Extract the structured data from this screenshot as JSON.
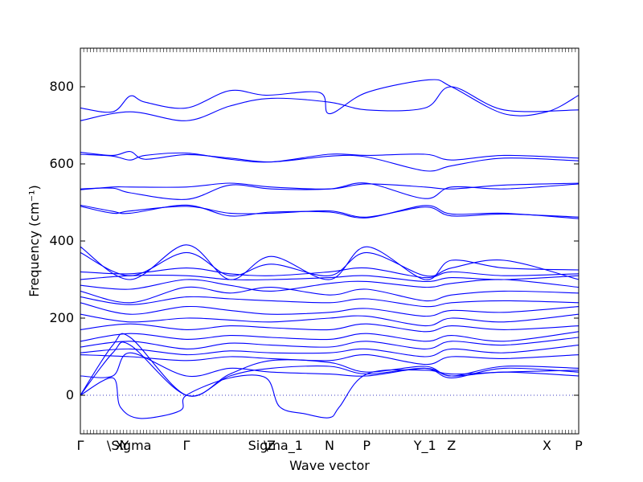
{
  "chart_data": {
    "type": "line",
    "title": "",
    "xlabel": "Wave vector",
    "ylabel": "Frequency (cm⁻¹)",
    "ylim": [
      -100,
      900
    ],
    "yticks": [
      0,
      200,
      400,
      600,
      800
    ],
    "grid": false,
    "xlim": [
      0,
      1
    ],
    "high_symmetry_points": [
      {
        "label": "Γ",
        "x": 0.0
      },
      {
        "label": "X",
        "x": 0.0787
      },
      {
        "label": "Y",
        "x": 0.0894
      },
      {
        "label": "\\Sigma",
        "x": 0.0979
      },
      {
        "label": "Γ",
        "x": 0.2128
      },
      {
        "label": "\\",
        "x": 0.3723
      },
      {
        "label": "Z",
        "x": 0.383
      },
      {
        "label": "Sigma_1",
        "x": 0.3915
      },
      {
        "label": "N",
        "x": 0.5
      },
      {
        "label": "P",
        "x": 0.5745
      },
      {
        "label": "Y_1",
        "x": 0.6915
      },
      {
        "label": "Z",
        "x": 0.7447
      },
      {
        "label": "X",
        "x": 0.9362
      },
      {
        "label": "P",
        "x": 1.0
      }
    ],
    "zero_line": {
      "y": 0,
      "style": "dotted"
    },
    "series": [
      {
        "x": [
          0,
          0.1,
          0.2128,
          0.3,
          0.383,
          0.5,
          0.5745,
          0.6915,
          0.7447,
          0.85,
          1.0
        ],
        "values": [
          712,
          735,
          712,
          750,
          770,
          760,
          740,
          745,
          800,
          740,
          740
        ]
      },
      {
        "x": [
          0,
          0.065,
          0.1,
          0.13,
          0.2128,
          0.3,
          0.3723,
          0.48,
          0.5,
          0.5745,
          0.7,
          0.7447,
          0.85,
          0.9362,
          1.0
        ],
        "values": [
          745,
          735,
          776,
          760,
          745,
          790,
          778,
          785,
          730,
          785,
          818,
          800,
          730,
          735,
          778
        ]
      },
      {
        "x": [
          0,
          0.065,
          0.1,
          0.13,
          0.2128,
          0.3,
          0.383,
          0.5,
          0.5745,
          0.6915,
          0.7447,
          0.85,
          1.0
        ],
        "values": [
          625,
          620,
          610,
          622,
          628,
          612,
          605,
          625,
          622,
          625,
          610,
          622,
          615
        ]
      },
      {
        "x": [
          0,
          0.065,
          0.1,
          0.13,
          0.2128,
          0.3,
          0.383,
          0.5,
          0.5745,
          0.6915,
          0.7447,
          0.85,
          1.0
        ],
        "values": [
          630,
          622,
          632,
          612,
          624,
          615,
          605,
          620,
          618,
          582,
          595,
          615,
          608
        ]
      },
      {
        "x": [
          0,
          0.065,
          0.1,
          0.2128,
          0.3,
          0.383,
          0.5,
          0.5745,
          0.6915,
          0.7447,
          0.85,
          1.0
        ],
        "values": [
          533,
          540,
          540,
          540,
          550,
          540,
          535,
          548,
          540,
          535,
          545,
          550
        ]
      },
      {
        "x": [
          0,
          0.065,
          0.1,
          0.2128,
          0.3,
          0.383,
          0.5,
          0.5745,
          0.6915,
          0.7447,
          0.85,
          1.0
        ],
        "values": [
          535,
          537,
          525,
          508,
          545,
          535,
          535,
          550,
          510,
          540,
          535,
          548
        ]
      },
      {
        "x": [
          0,
          0.065,
          0.1,
          0.2128,
          0.3,
          0.383,
          0.5,
          0.5745,
          0.6915,
          0.7447,
          0.85,
          1.0
        ],
        "values": [
          493,
          477,
          472,
          493,
          465,
          475,
          475,
          460,
          492,
          470,
          472,
          458
        ]
      },
      {
        "x": [
          0,
          0.065,
          0.1,
          0.2128,
          0.3,
          0.383,
          0.5,
          0.5745,
          0.6915,
          0.7447,
          0.85,
          1.0
        ],
        "values": [
          490,
          472,
          478,
          490,
          472,
          472,
          478,
          462,
          488,
          465,
          470,
          462
        ]
      },
      {
        "x": [
          0,
          0.1,
          0.2128,
          0.3,
          0.383,
          0.5,
          0.5745,
          0.6915,
          0.7447,
          0.85,
          1.0
        ],
        "values": [
          385,
          300,
          390,
          300,
          360,
          300,
          385,
          300,
          350,
          330,
          325
        ]
      },
      {
        "x": [
          0,
          0.1,
          0.2128,
          0.3,
          0.383,
          0.5,
          0.5745,
          0.6915,
          0.7447,
          0.85,
          1.0
        ],
        "values": [
          370,
          310,
          370,
          310,
          340,
          310,
          370,
          310,
          330,
          350,
          300
        ]
      },
      {
        "x": [
          0,
          0.1,
          0.2128,
          0.3,
          0.383,
          0.5,
          0.5745,
          0.6915,
          0.7447,
          0.85,
          1.0
        ],
        "values": [
          320,
          315,
          330,
          315,
          310,
          320,
          330,
          305,
          320,
          310,
          315
        ]
      },
      {
        "x": [
          0,
          0.1,
          0.2128,
          0.3,
          0.383,
          0.5,
          0.5745,
          0.6915,
          0.7447,
          0.85,
          1.0
        ],
        "values": [
          300,
          310,
          310,
          300,
          300,
          305,
          310,
          295,
          305,
          300,
          310
        ]
      },
      {
        "x": [
          0,
          0.1,
          0.2128,
          0.3,
          0.383,
          0.5,
          0.5745,
          0.6915,
          0.7447,
          0.85,
          1.0
        ],
        "values": [
          285,
          275,
          300,
          285,
          270,
          290,
          295,
          280,
          290,
          300,
          280
        ]
      },
      {
        "x": [
          0,
          0.1,
          0.2128,
          0.3,
          0.383,
          0.5,
          0.5745,
          0.6915,
          0.7447,
          0.85,
          1.0
        ],
        "values": [
          270,
          240,
          280,
          265,
          280,
          260,
          275,
          245,
          260,
          270,
          265
        ]
      },
      {
        "x": [
          0,
          0.1,
          0.2128,
          0.3,
          0.383,
          0.5,
          0.5745,
          0.6915,
          0.7447,
          0.85,
          1.0
        ],
        "values": [
          255,
          235,
          255,
          250,
          245,
          240,
          250,
          230,
          240,
          245,
          240
        ]
      },
      {
        "x": [
          0,
          0.1,
          0.2128,
          0.3,
          0.383,
          0.5,
          0.5745,
          0.6915,
          0.7447,
          0.85,
          1.0
        ],
        "values": [
          240,
          210,
          230,
          220,
          210,
          215,
          225,
          205,
          220,
          215,
          230
        ]
      },
      {
        "x": [
          0,
          0.1,
          0.2128,
          0.3,
          0.383,
          0.5,
          0.5745,
          0.6915,
          0.7447,
          0.85,
          1.0
        ],
        "values": [
          210,
          190,
          200,
          195,
          190,
          200,
          205,
          180,
          200,
          190,
          210
        ]
      },
      {
        "x": [
          0,
          0.1,
          0.2128,
          0.3,
          0.383,
          0.5,
          0.5745,
          0.6915,
          0.7447,
          0.85,
          1.0
        ],
        "values": [
          170,
          185,
          170,
          180,
          175,
          170,
          185,
          165,
          180,
          170,
          180
        ]
      },
      {
        "x": [
          0,
          0.1,
          0.2128,
          0.3,
          0.383,
          0.5,
          0.5745,
          0.6915,
          0.7447,
          0.85,
          1.0
        ],
        "values": [
          140,
          160,
          145,
          155,
          150,
          145,
          160,
          140,
          155,
          140,
          165
        ]
      },
      {
        "x": [
          0,
          0.1,
          0.2128,
          0.3,
          0.383,
          0.5,
          0.5745,
          0.6915,
          0.7447,
          0.85,
          1.0
        ],
        "values": [
          125,
          140,
          120,
          135,
          130,
          125,
          140,
          120,
          140,
          130,
          150
        ]
      },
      {
        "x": [
          0,
          0.1,
          0.2128,
          0.3,
          0.383,
          0.5,
          0.5745,
          0.6915,
          0.7447,
          0.85,
          1.0
        ],
        "values": [
          110,
          120,
          105,
          115,
          110,
          110,
          120,
          100,
          120,
          110,
          130
        ]
      },
      {
        "x": [
          0,
          0.1,
          0.2128,
          0.3,
          0.383,
          0.5,
          0.5745,
          0.6915,
          0.7447,
          0.85,
          1.0
        ],
        "values": [
          105,
          100,
          90,
          100,
          95,
          90,
          105,
          80,
          100,
          95,
          105
        ]
      },
      {
        "x": [
          0,
          0.065,
          0.1,
          0.2128,
          0.3,
          0.383,
          0.5,
          0.5745,
          0.6915,
          0.7447,
          0.85,
          1.0
        ],
        "values": [
          50,
          50,
          110,
          50,
          70,
          60,
          55,
          50,
          70,
          50,
          60,
          50
        ]
      },
      {
        "x": [
          0,
          0.065,
          0.08,
          0.12,
          0.2,
          0.2128,
          0.3,
          0.3723,
          0.4,
          0.45,
          0.5,
          0.52,
          0.5745,
          0.6915,
          0.7447,
          0.85,
          1.0
        ],
        "values": [
          0,
          45,
          -30,
          -60,
          -40,
          0,
          45,
          45,
          -30,
          -48,
          -58,
          -30,
          55,
          65,
          55,
          60,
          65
        ]
      },
      {
        "x": [
          0,
          0.065,
          0.1,
          0.2128,
          0.3,
          0.383,
          0.5,
          0.5745,
          0.6915,
          0.7447,
          0.85,
          1.0
        ],
        "values": [
          0,
          110,
          130,
          0,
          50,
          70,
          75,
          55,
          70,
          45,
          70,
          60
        ]
      },
      {
        "x": [
          0,
          0.065,
          0.1,
          0.2128,
          0.3,
          0.383,
          0.5,
          0.5745,
          0.6915,
          0.7447,
          0.85,
          1.0
        ],
        "values": [
          0,
          130,
          150,
          0,
          55,
          90,
          85,
          60,
          75,
          50,
          75,
          70
        ]
      }
    ]
  }
}
